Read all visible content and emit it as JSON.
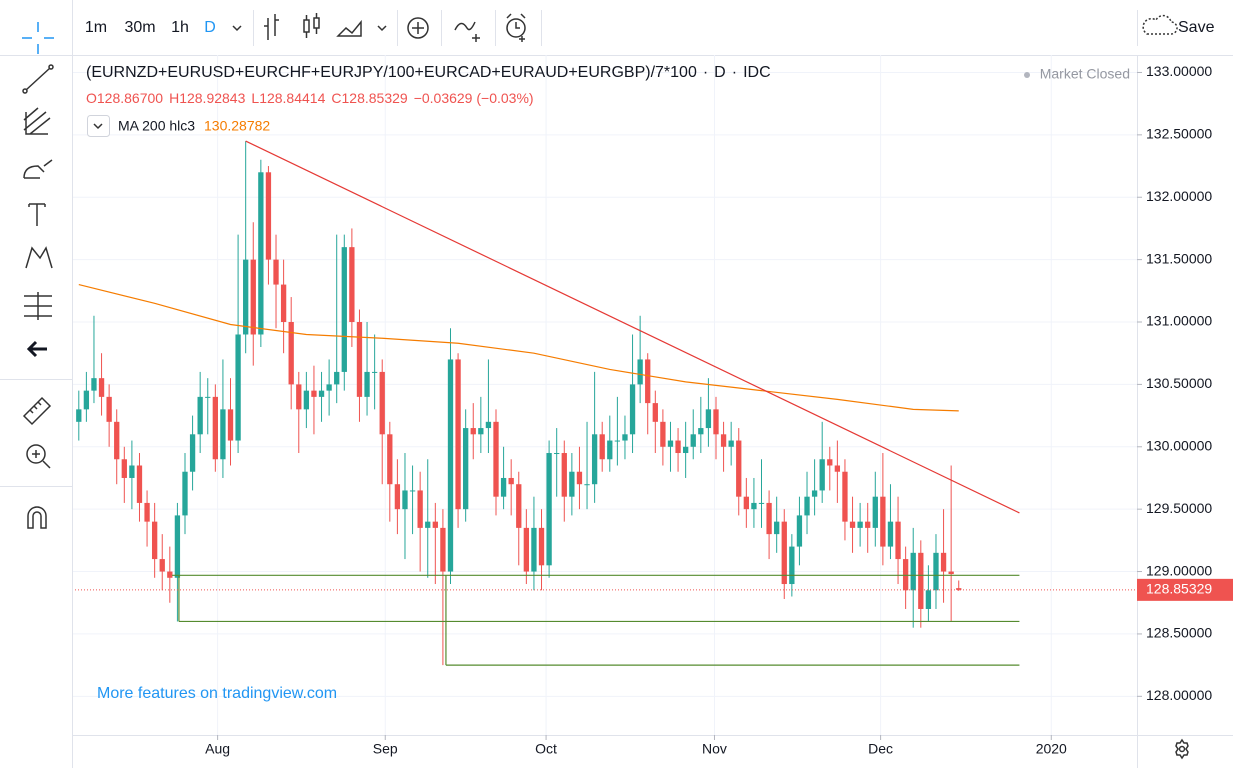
{
  "toolbar": {
    "intervals": [
      "1m",
      "30m",
      "1h",
      "D"
    ],
    "save": "Save"
  },
  "legend": {
    "symbol": "(EURNZD+EURUSD+EURCHF+EURJPY/100+EURCAD+EURAUD+EURGBP)/7*100",
    "separator": "·",
    "interval": "D",
    "exchange": "IDC",
    "status": "Market Closed",
    "ohlc": [
      {
        "label": "O",
        "value": "128.86700"
      },
      {
        "label": "H",
        "value": "128.92843"
      },
      {
        "label": "L",
        "value": "128.84414"
      },
      {
        "label": "C",
        "value": "128.85329"
      }
    ],
    "change": "−0.03629 (−0.03%)",
    "indicator_value": "130.28782"
  },
  "promo_link": "More features on tradingview.com",
  "chart_data": {
    "type": "candlestick",
    "up_color": "#26a69a",
    "down_color": "#ef5350",
    "open": [
      130.2,
      130.3,
      130.45,
      130.55,
      130.4,
      130.2,
      129.9,
      129.75,
      129.85,
      129.55,
      129.4,
      129.1,
      129.0,
      128.95,
      129.45,
      129.8,
      130.1,
      130.4,
      130.4,
      129.9,
      130.3,
      130.05,
      130.9,
      131.5,
      130.9,
      132.2,
      131.5,
      131.3,
      131.0,
      130.5,
      130.3,
      130.45,
      130.4,
      130.45,
      130.5,
      130.6,
      131.6,
      131.0,
      130.4,
      130.6,
      130.6,
      130.1,
      129.7,
      129.5,
      129.65,
      129.65,
      129.35,
      129.4,
      129.35,
      129.0,
      130.7,
      129.5,
      130.15,
      130.1,
      130.15,
      130.2,
      129.6,
      129.75,
      129.7,
      129.35,
      129.0,
      129.35,
      129.05,
      129.95,
      129.95,
      129.6,
      129.8,
      129.7,
      129.7,
      130.1,
      129.9,
      130.05,
      130.05,
      130.1,
      130.5,
      130.7,
      130.35,
      130.2,
      130.0,
      130.05,
      129.95,
      130.0,
      130.1,
      130.15,
      130.3,
      130.1,
      130.0,
      130.05,
      129.6,
      129.5,
      129.55,
      129.55,
      129.3,
      129.4,
      128.9,
      129.2,
      129.45,
      129.6,
      129.65,
      129.9,
      129.85,
      129.8,
      129.4,
      129.35,
      129.4,
      129.35,
      129.6,
      129.2,
      129.4,
      129.1,
      128.85,
      129.15,
      128.7,
      128.85,
      129.15,
      129.0,
      128.867
    ],
    "high": [
      130.45,
      130.6,
      131.05,
      130.75,
      130.5,
      130.3,
      130.0,
      130.05,
      129.95,
      129.65,
      129.55,
      129.3,
      129.2,
      129.55,
      129.95,
      130.25,
      130.6,
      130.55,
      130.5,
      130.7,
      130.55,
      131.7,
      132.45,
      131.8,
      132.3,
      132.25,
      131.7,
      131.5,
      131.2,
      130.6,
      130.6,
      130.65,
      130.6,
      130.7,
      131.7,
      131.7,
      131.75,
      131.1,
      131.0,
      130.9,
      130.7,
      130.2,
      129.9,
      129.95,
      129.85,
      129.8,
      129.9,
      129.55,
      129.5,
      130.95,
      130.75,
      130.3,
      130.35,
      130.4,
      130.7,
      130.3,
      130.0,
      129.9,
      129.8,
      129.5,
      129.6,
      129.5,
      130.05,
      130.15,
      130.05,
      129.95,
      130.0,
      130.2,
      130.6,
      130.2,
      130.25,
      130.4,
      130.25,
      130.9,
      131.05,
      130.75,
      130.45,
      130.3,
      130.2,
      130.15,
      130.2,
      130.3,
      130.4,
      130.55,
      130.4,
      130.2,
      130.2,
      130.15,
      129.75,
      129.75,
      129.9,
      129.65,
      129.6,
      129.5,
      129.3,
      129.6,
      129.8,
      129.9,
      130.2,
      130.0,
      130.05,
      129.9,
      129.6,
      129.55,
      129.55,
      129.8,
      129.95,
      129.7,
      129.6,
      129.2,
      129.35,
      129.25,
      129.05,
      129.3,
      129.5,
      129.85,
      128.92843
    ],
    "low": [
      130.05,
      130.2,
      130.35,
      130.25,
      130.0,
      129.7,
      129.55,
      129.5,
      129.4,
      129.2,
      128.95,
      128.85,
      128.75,
      128.6,
      129.3,
      129.65,
      129.95,
      130.1,
      129.8,
      129.75,
      129.85,
      129.95,
      130.75,
      130.65,
      130.8,
      131.3,
      130.95,
      130.75,
      130.3,
      129.95,
      130.15,
      130.1,
      130.2,
      130.25,
      130.35,
      130.45,
      130.8,
      130.2,
      130.25,
      130.3,
      129.7,
      129.4,
      129.3,
      129.1,
      129.3,
      129.0,
      128.95,
      128.9,
      128.25,
      128.9,
      129.35,
      129.4,
      129.9,
      129.95,
      129.95,
      129.45,
      129.5,
      129.45,
      129.05,
      128.9,
      128.85,
      128.85,
      128.95,
      129.6,
      129.4,
      129.45,
      129.5,
      129.5,
      129.55,
      129.8,
      129.8,
      129.85,
      129.9,
      129.95,
      130.35,
      130.1,
      129.95,
      129.85,
      129.8,
      129.8,
      129.75,
      129.9,
      129.95,
      130.0,
      129.9,
      129.8,
      129.85,
      129.45,
      129.35,
      129.35,
      129.35,
      129.1,
      129.15,
      128.78,
      128.8,
      129.05,
      129.3,
      129.45,
      129.55,
      129.65,
      129.55,
      129.25,
      129.15,
      129.2,
      129.15,
      129.2,
      129.05,
      129.1,
      128.9,
      128.7,
      128.55,
      128.55,
      128.6,
      128.7,
      128.75,
      128.6,
      128.84414
    ],
    "close": [
      130.3,
      130.45,
      130.55,
      130.4,
      130.2,
      129.9,
      129.75,
      129.85,
      129.55,
      129.4,
      129.1,
      129.0,
      128.95,
      129.45,
      129.8,
      130.1,
      130.4,
      130.4,
      129.9,
      130.3,
      130.05,
      130.9,
      131.5,
      130.9,
      132.2,
      131.5,
      131.3,
      131.0,
      130.5,
      130.3,
      130.45,
      130.4,
      130.45,
      130.5,
      130.6,
      131.6,
      131.0,
      130.4,
      130.6,
      130.6,
      130.1,
      129.7,
      129.5,
      129.65,
      129.65,
      129.35,
      129.4,
      129.35,
      129.0,
      130.7,
      129.5,
      130.15,
      130.1,
      130.15,
      130.2,
      129.6,
      129.75,
      129.7,
      129.35,
      129.0,
      129.35,
      129.05,
      129.95,
      129.95,
      129.6,
      129.8,
      129.7,
      129.7,
      130.1,
      129.9,
      130.05,
      130.05,
      130.1,
      130.5,
      130.7,
      130.35,
      130.2,
      130.0,
      130.05,
      129.95,
      130.0,
      130.1,
      130.15,
      130.3,
      130.1,
      130.0,
      130.05,
      129.6,
      129.5,
      129.55,
      129.55,
      129.3,
      129.4,
      128.9,
      129.2,
      129.45,
      129.6,
      129.65,
      129.9,
      129.85,
      129.8,
      129.4,
      129.35,
      129.4,
      129.35,
      129.6,
      129.2,
      129.4,
      129.1,
      128.85,
      129.15,
      128.7,
      128.85,
      129.15,
      129.0,
      128.98,
      128.85329
    ],
    "last_price_label": "128.85329",
    "ma": {
      "name": "MA 200 hlc3",
      "color": "#f57c00",
      "x": [
        0,
        10,
        20,
        30,
        40,
        50,
        60,
        70,
        80,
        90,
        100,
        110,
        116
      ],
      "values": [
        131.3,
        131.15,
        130.98,
        130.9,
        130.87,
        130.83,
        130.75,
        130.62,
        130.52,
        130.45,
        130.38,
        130.3,
        130.28782
      ]
    },
    "drawings": [
      {
        "color": "#e53935",
        "x": [
          22,
          124
        ],
        "y": [
          132.45,
          129.47
        ]
      },
      {
        "color": "#558b2f",
        "x": [
          12.3,
          124
        ],
        "y": [
          128.97,
          128.97
        ]
      },
      {
        "color": "#558b2f",
        "x": [
          13.2,
          13.2
        ],
        "y": [
          128.97,
          128.6
        ]
      },
      {
        "color": "#558b2f",
        "x": [
          13.2,
          124
        ],
        "y": [
          128.6,
          128.6
        ]
      },
      {
        "color": "#558b2f",
        "x": [
          48.4,
          48.4
        ],
        "y": [
          128.97,
          128.25
        ]
      },
      {
        "color": "#558b2f",
        "x": [
          48.4,
          124
        ],
        "y": [
          128.25,
          128.25
        ]
      }
    ],
    "xlim": [
      -0.5,
      139.5
    ],
    "xticks": [
      {
        "value": 18.3,
        "label": "Aug"
      },
      {
        "value": 40.4,
        "label": "Sep"
      },
      {
        "value": 61.6,
        "label": "Oct"
      },
      {
        "value": 83.8,
        "label": "Nov"
      },
      {
        "value": 105.7,
        "label": "Dec"
      },
      {
        "value": 128.2,
        "label": "2020"
      }
    ],
    "ylim": [
      127.69,
      133.14
    ],
    "yticks": [
      {
        "value": 128,
        "label": "128.00000"
      },
      {
        "value": 128.5,
        "label": "128.50000"
      },
      {
        "value": 129,
        "label": "129.00000"
      },
      {
        "value": 129.5,
        "label": "129.50000"
      },
      {
        "value": 130,
        "label": "130.00000"
      },
      {
        "value": 130.5,
        "label": "130.50000"
      },
      {
        "value": 131,
        "label": "131.00000"
      },
      {
        "value": 131.5,
        "label": "131.50000"
      },
      {
        "value": 132,
        "label": "132.00000"
      },
      {
        "value": 132.5,
        "label": "132.50000"
      },
      {
        "value": 133,
        "label": "133.00000"
      }
    ],
    "grid": true
  }
}
